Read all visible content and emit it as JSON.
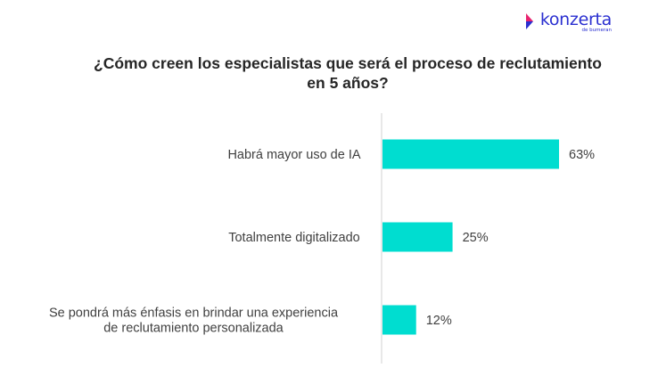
{
  "brand": {
    "name": "konzerta",
    "tagline": "de bumeran",
    "color": "#2a2fd0",
    "accent_colors": [
      "#e8236f",
      "#2a2fd0"
    ]
  },
  "title_lines": [
    "¿Cómo creen los especialistas que será el proceso de reclutamiento",
    "en 5 años?"
  ],
  "chart_data": {
    "type": "bar",
    "orientation": "horizontal",
    "title": "¿Cómo creen los especialistas que será el proceso de reclutamiento en 5 años?",
    "categories": [
      [
        "Habrá mayor uso de IA"
      ],
      [
        "Totalmente digitalizado"
      ],
      [
        "Se pondrá más énfasis en brindar una experiencia",
        "de reclutamiento personalizada"
      ]
    ],
    "values": [
      63,
      25,
      12
    ],
    "value_labels": [
      "63%",
      "25%",
      "12%"
    ],
    "unit": "%",
    "xlim": [
      0,
      100
    ],
    "bar_color": "#00ddd0",
    "axis_color": "#d0d0d0",
    "grid": false,
    "legend": false
  }
}
